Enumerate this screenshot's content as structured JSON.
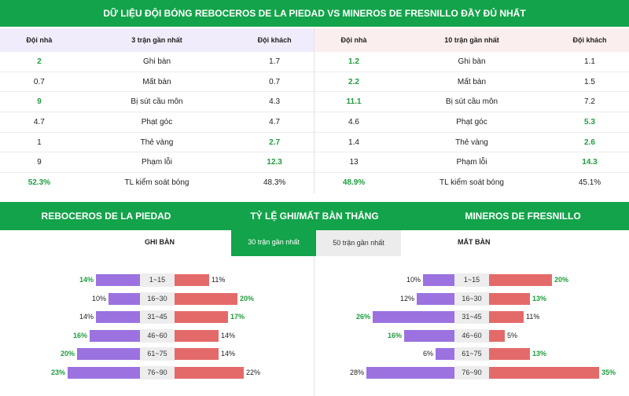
{
  "banner": "DỮ LIỆU ĐỘI BÓNG REBOCEROS DE LA PIEDAD VS MINEROS DE FRESNILLO ĐẦY ĐỦ NHẤT",
  "left_panel": {
    "headers": [
      "Đội nhà",
      "3 trận gần nhất",
      "Đội khách"
    ],
    "rows": [
      {
        "home": "2",
        "label": "Ghi bàn",
        "away": "1.7",
        "hl": "home"
      },
      {
        "home": "0.7",
        "label": "Mất bàn",
        "away": "0.7",
        "hl": ""
      },
      {
        "home": "9",
        "label": "Bị sút cầu môn",
        "away": "4.3",
        "hl": "home"
      },
      {
        "home": "4.7",
        "label": "Phạt góc",
        "away": "4.7",
        "hl": ""
      },
      {
        "home": "1",
        "label": "Thẻ vàng",
        "away": "2.7",
        "hl": "away"
      },
      {
        "home": "9",
        "label": "Phạm lỗi",
        "away": "12.3",
        "hl": "away"
      },
      {
        "home": "52.3%",
        "label": "TL kiểm soát bóng",
        "away": "48.3%",
        "hl": "home"
      }
    ]
  },
  "right_panel": {
    "headers": [
      "Đội nhà",
      "10 trận gần nhất",
      "Đội khách"
    ],
    "rows": [
      {
        "home": "1.2",
        "label": "Ghi bàn",
        "away": "1.1",
        "hl": "home"
      },
      {
        "home": "2.2",
        "label": "Mất bàn",
        "away": "1.5",
        "hl": "home"
      },
      {
        "home": "11.1",
        "label": "Bị sút cầu môn",
        "away": "7.2",
        "hl": "home"
      },
      {
        "home": "4.6",
        "label": "Phạt góc",
        "away": "5.3",
        "hl": "away"
      },
      {
        "home": "1.4",
        "label": "Thẻ vàng",
        "away": "2.6",
        "hl": "away"
      },
      {
        "home": "13",
        "label": "Phạm lỗi",
        "away": "14.3",
        "hl": "away"
      },
      {
        "home": "48.9%",
        "label": "TL kiểm soát bóng",
        "away": "45.1%",
        "hl": "home"
      }
    ]
  },
  "section2": {
    "home_team": "REBOCEROS DE LA PIEDAD",
    "title": "TỶ LỆ GHI/MẤT BÀN THẮNG",
    "away_team": "MINEROS DE FRESNILLO",
    "left_sub": "GHI BÀN",
    "right_sub": "MẤT BÀN",
    "tab_active": "30 trận gần nhất",
    "tab_inactive": "50 trận gần nhất"
  },
  "colors": {
    "green": "#13a34a",
    "purple": "#9b72e0",
    "red": "#e46a6a"
  },
  "dist_left": [
    {
      "range": "1~15",
      "l": "14%",
      "lv": 14,
      "lg": true,
      "r": "11%",
      "rv": 11,
      "rg": false
    },
    {
      "range": "16~30",
      "l": "10%",
      "lv": 10,
      "lg": false,
      "r": "20%",
      "rv": 20,
      "rg": true
    },
    {
      "range": "31~45",
      "l": "14%",
      "lv": 14,
      "lg": false,
      "r": "17%",
      "rv": 17,
      "rg": true
    },
    {
      "range": "46~60",
      "l": "16%",
      "lv": 16,
      "lg": true,
      "r": "14%",
      "rv": 14,
      "rg": false
    },
    {
      "range": "61~75",
      "l": "20%",
      "lv": 20,
      "lg": true,
      "r": "14%",
      "rv": 14,
      "rg": false
    },
    {
      "range": "76~90",
      "l": "23%",
      "lv": 23,
      "lg": true,
      "r": "22%",
      "rv": 22,
      "rg": false
    }
  ],
  "dist_right": [
    {
      "range": "1~15",
      "l": "10%",
      "lv": 10,
      "lg": false,
      "r": "20%",
      "rv": 20,
      "rg": true
    },
    {
      "range": "16~30",
      "l": "12%",
      "lv": 12,
      "lg": false,
      "r": "13%",
      "rv": 13,
      "rg": true
    },
    {
      "range": "31~45",
      "l": "26%",
      "lv": 26,
      "lg": true,
      "r": "11%",
      "rv": 11,
      "rg": false
    },
    {
      "range": "46~60",
      "l": "16%",
      "lv": 16,
      "lg": true,
      "r": "5%",
      "rv": 5,
      "rg": false
    },
    {
      "range": "61~75",
      "l": "6%",
      "lv": 6,
      "lg": false,
      "r": "13%",
      "rv": 13,
      "rg": true
    },
    {
      "range": "76~90",
      "l": "28%",
      "lv": 28,
      "lg": false,
      "r": "35%",
      "rv": 35,
      "rg": true
    }
  ]
}
